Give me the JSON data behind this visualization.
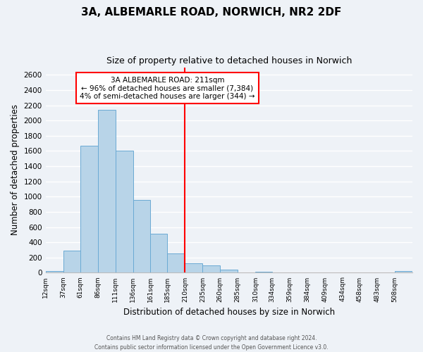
{
  "title": "3A, ALBEMARLE ROAD, NORWICH, NR2 2DF",
  "subtitle": "Size of property relative to detached houses in Norwich",
  "xlabel": "Distribution of detached houses by size in Norwich",
  "ylabel": "Number of detached properties",
  "bar_color": "#b8d4e8",
  "bar_edge_color": "#6aaad4",
  "background_color": "#eef2f7",
  "grid_color": "#ffffff",
  "bin_labels": [
    "12sqm",
    "37sqm",
    "61sqm",
    "86sqm",
    "111sqm",
    "136sqm",
    "161sqm",
    "185sqm",
    "210sqm",
    "235sqm",
    "260sqm",
    "285sqm",
    "310sqm",
    "334sqm",
    "359sqm",
    "384sqm",
    "409sqm",
    "434sqm",
    "458sqm",
    "483sqm",
    "508sqm"
  ],
  "bin_values": [
    12,
    37,
    61,
    86,
    111,
    136,
    161,
    185,
    210,
    235,
    260,
    285,
    310,
    334,
    359,
    384,
    409,
    434,
    458,
    483,
    508
  ],
  "bar_heights": [
    20,
    290,
    1670,
    2140,
    1600,
    960,
    510,
    255,
    120,
    95,
    40,
    0,
    10,
    0,
    0,
    0,
    0,
    0,
    0,
    0,
    20
  ],
  "property_line_x": 210,
  "annotation_line1": "3A ALBEMARLE ROAD: 211sqm",
  "annotation_line2": "← 96% of detached houses are smaller (7,384)",
  "annotation_line3": "4% of semi-detached houses are larger (344) →",
  "ylim": [
    0,
    2700
  ],
  "yticks": [
    0,
    200,
    400,
    600,
    800,
    1000,
    1200,
    1400,
    1600,
    1800,
    2000,
    2200,
    2400,
    2600
  ],
  "footnote1": "Contains HM Land Registry data © Crown copyright and database right 2024.",
  "footnote2": "Contains public sector information licensed under the Open Government Licence v3.0."
}
